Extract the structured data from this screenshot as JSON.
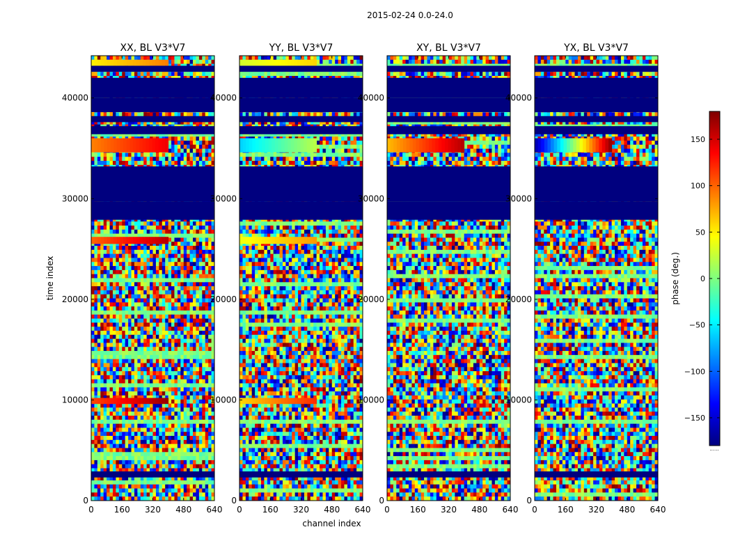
{
  "figure": {
    "suptitle": "2015-02-24 0.0-24.0",
    "colorbar": {
      "label": "phase (deg.)",
      "range": [
        -180,
        180
      ],
      "ticks": [
        -150,
        -100,
        -50,
        0,
        50,
        100,
        150
      ],
      "tick_labels": [
        "−150",
        "−100",
        "−50",
        "0",
        "50",
        "100",
        "150"
      ],
      "colormap": "jet",
      "colors": [
        "#00007f",
        "#0000ff",
        "#007fff",
        "#00ffff",
        "#7fff7f",
        "#ffff00",
        "#ff7f00",
        "#ff0000",
        "#7f0000"
      ]
    },
    "footer_mark": "......"
  },
  "chart_data": [
    {
      "type": "heatmap",
      "title": "XX, BL V3*V7",
      "xlabel": "",
      "ylabel": "time index",
      "xlim": [
        0,
        640
      ],
      "ylim": [
        0,
        44200
      ],
      "xticks": [
        0,
        160,
        320,
        480,
        640
      ],
      "yticks": [
        0,
        10000,
        20000,
        30000,
        40000
      ],
      "value_label": "phase (deg.)",
      "value_range": [
        -180,
        180
      ],
      "flagged_value": -180,
      "flagged_time_ranges": [
        [
          27900,
          29700
        ],
        [
          29700,
          33200
        ],
        [
          36400,
          37200
        ],
        [
          37600,
          38200
        ],
        [
          38600,
          40000
        ],
        [
          40000,
          40500
        ],
        [
          40500,
          42000
        ],
        [
          42600,
          43200
        ],
        [
          2300,
          2900
        ]
      ],
      "coherent_bands": [
        {
          "time_range": [
            34600,
            36000
          ],
          "channel_range": [
            0,
            400
          ],
          "phase_range": [
            90,
            140
          ]
        },
        {
          "time_range": [
            25500,
            26200
          ],
          "channel_range": [
            0,
            400
          ],
          "phase_range": [
            100,
            160
          ]
        },
        {
          "time_range": [
            9600,
            10200
          ],
          "channel_range": [
            0,
            400
          ],
          "phase_range": [
            110,
            170
          ]
        },
        {
          "time_range": [
            43200,
            43800
          ],
          "channel_range": [
            0,
            400
          ],
          "phase_range": [
            50,
            90
          ]
        }
      ]
    },
    {
      "type": "heatmap",
      "title": "YY, BL V3*V7",
      "xlabel": "channel index",
      "ylabel": "",
      "xlim": [
        0,
        640
      ],
      "ylim": [
        0,
        44200
      ],
      "xticks": [
        0,
        160,
        320,
        480,
        640
      ],
      "yticks": [
        0,
        10000,
        20000,
        30000,
        40000
      ],
      "value_label": "phase (deg.)",
      "value_range": [
        -180,
        180
      ],
      "flagged_value": -180,
      "flagged_time_ranges": [
        [
          27900,
          29700
        ],
        [
          29700,
          33200
        ],
        [
          36400,
          37200
        ],
        [
          37600,
          38200
        ],
        [
          38600,
          40000
        ],
        [
          40000,
          40500
        ],
        [
          40500,
          42000
        ],
        [
          42600,
          43200
        ],
        [
          2300,
          2900
        ]
      ],
      "coherent_bands": [
        {
          "time_range": [
            34600,
            36000
          ],
          "channel_range": [
            0,
            400
          ],
          "phase_range": [
            -60,
            20
          ]
        },
        {
          "time_range": [
            25500,
            26200
          ],
          "channel_range": [
            0,
            400
          ],
          "phase_range": [
            40,
            80
          ]
        },
        {
          "time_range": [
            9600,
            10200
          ],
          "channel_range": [
            0,
            400
          ],
          "phase_range": [
            60,
            120
          ]
        },
        {
          "time_range": [
            43200,
            43800
          ],
          "channel_range": [
            0,
            400
          ],
          "phase_range": [
            30,
            60
          ]
        }
      ]
    },
    {
      "type": "heatmap",
      "title": "XY, BL V3*V7",
      "xlabel": "",
      "ylabel": "",
      "xlim": [
        0,
        640
      ],
      "ylim": [
        0,
        44200
      ],
      "xticks": [
        0,
        160,
        320,
        480,
        640
      ],
      "yticks": [
        0,
        10000,
        20000,
        30000,
        40000
      ],
      "value_label": "phase (deg.)",
      "value_range": [
        -180,
        180
      ],
      "flagged_value": -180,
      "flagged_time_ranges": [
        [
          27900,
          29700
        ],
        [
          29700,
          33200
        ],
        [
          36400,
          37200
        ],
        [
          37600,
          38200
        ],
        [
          38600,
          40000
        ],
        [
          40000,
          40500
        ],
        [
          40500,
          42000
        ],
        [
          42600,
          43200
        ],
        [
          2300,
          2900
        ]
      ],
      "coherent_bands": [
        {
          "time_range": [
            34600,
            36000
          ],
          "channel_range": [
            0,
            400
          ],
          "phase_range": [
            70,
            160
          ]
        }
      ]
    },
    {
      "type": "heatmap",
      "title": "YX, BL V3*V7",
      "xlabel": "",
      "ylabel": "",
      "xlim": [
        0,
        640
      ],
      "ylim": [
        0,
        44200
      ],
      "xticks": [
        0,
        160,
        320,
        480,
        640
      ],
      "yticks": [
        0,
        10000,
        20000,
        30000,
        40000
      ],
      "value_label": "phase (deg.)",
      "value_range": [
        -180,
        180
      ],
      "flagged_value": -180,
      "flagged_time_ranges": [
        [
          27900,
          29700
        ],
        [
          29700,
          33200
        ],
        [
          36400,
          37200
        ],
        [
          37600,
          38200
        ],
        [
          38600,
          40000
        ],
        [
          40000,
          40500
        ],
        [
          40500,
          42000
        ],
        [
          42600,
          43200
        ],
        [
          2300,
          2900
        ]
      ],
      "coherent_bands": [
        {
          "time_range": [
            34600,
            36000
          ],
          "channel_range": [
            0,
            400
          ],
          "phase_range": [
            -160,
            170
          ]
        }
      ]
    }
  ]
}
